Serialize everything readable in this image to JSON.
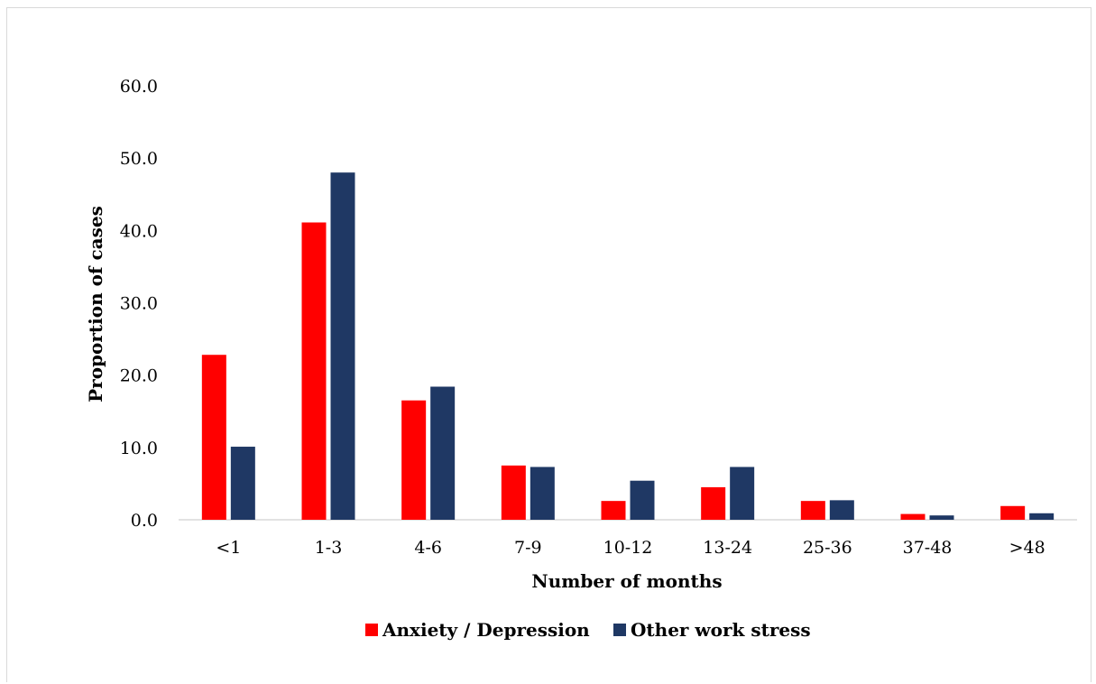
{
  "chart_data": {
    "type": "bar",
    "title": "",
    "xlabel": "Number of months",
    "ylabel": "Proportion of cases",
    "categories": [
      "<1",
      "1-3",
      "4-6",
      "7-9",
      "10-12",
      "13-24",
      "25-36",
      "37-48",
      ">48"
    ],
    "series": [
      {
        "name": "Anxiety / Depression",
        "color": "#ff0000",
        "values": [
          22.8,
          41.1,
          16.5,
          7.5,
          2.6,
          4.5,
          2.6,
          0.8,
          1.9
        ]
      },
      {
        "name": "Other work stress",
        "color": "#1f3864",
        "values": [
          10.1,
          48.0,
          18.4,
          7.3,
          5.4,
          7.3,
          2.7,
          0.6,
          0.9
        ]
      }
    ],
    "ylim": [
      0,
      60
    ],
    "yticks": [
      "0.0",
      "10.0",
      "20.0",
      "30.0",
      "40.0",
      "50.0",
      "60.0"
    ],
    "grid": false,
    "legend_position": "bottom"
  }
}
